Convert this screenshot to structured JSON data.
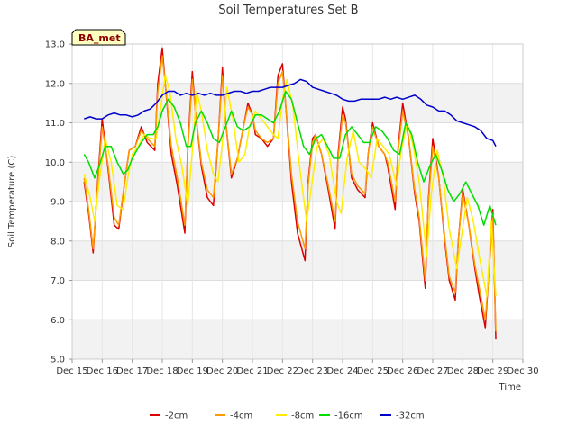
{
  "chart_data": {
    "type": "line",
    "title": "Soil Temperatures Set B",
    "xlabel": "Time",
    "ylabel": "Soil Temperature (C)",
    "badge": "BA_met",
    "xlim": [
      15,
      30
    ],
    "ylim": [
      5.0,
      13.0
    ],
    "x_ticks": [
      {
        "value": 15,
        "label": "Dec 15"
      },
      {
        "value": 16,
        "label": "Dec 16"
      },
      {
        "value": 17,
        "label": "Dec 17"
      },
      {
        "value": 18,
        "label": "Dec 18"
      },
      {
        "value": 19,
        "label": "Dec 19"
      },
      {
        "value": 20,
        "label": "Dec 20"
      },
      {
        "value": 21,
        "label": "Dec 21"
      },
      {
        "value": 22,
        "label": "Dec 22"
      },
      {
        "value": 23,
        "label": "Dec 23"
      },
      {
        "value": 24,
        "label": "Dec 24"
      },
      {
        "value": 25,
        "label": "Dec 25"
      },
      {
        "value": 26,
        "label": "Dec 26"
      },
      {
        "value": 27,
        "label": "Dec 27"
      },
      {
        "value": 28,
        "label": "Dec 28"
      },
      {
        "value": 29,
        "label": "Dec 29"
      },
      {
        "value": 30,
        "label": "Dec 30"
      }
    ],
    "y_ticks": [
      "5.0",
      "6.0",
      "7.0",
      "8.0",
      "9.0",
      "10.0",
      "11.0",
      "12.0",
      "13.0"
    ],
    "grid": true,
    "legend_position": "bottom",
    "series": [
      {
        "name": "-2cm",
        "color": "#dd0000",
        "x": [
          15.4,
          15.55,
          15.7,
          15.85,
          16.0,
          16.2,
          16.4,
          16.55,
          16.75,
          16.9,
          17.1,
          17.3,
          17.5,
          17.75,
          17.85,
          18.0,
          18.1,
          18.3,
          18.5,
          18.75,
          18.85,
          19.0,
          19.1,
          19.3,
          19.5,
          19.7,
          19.85,
          20.0,
          20.1,
          20.3,
          20.5,
          20.7,
          20.85,
          21.0,
          21.1,
          21.3,
          21.5,
          21.7,
          21.85,
          22.0,
          22.1,
          22.3,
          22.5,
          22.75,
          22.85,
          23.0,
          23.1,
          23.3,
          23.5,
          23.75,
          23.85,
          24.0,
          24.1,
          24.3,
          24.5,
          24.75,
          24.85,
          25.0,
          25.2,
          25.4,
          25.5,
          25.75,
          25.85,
          26.0,
          26.2,
          26.4,
          26.55,
          26.75,
          26.85,
          27.0,
          27.2,
          27.4,
          27.55,
          27.75,
          27.85,
          28.0,
          28.2,
          28.4,
          28.55,
          28.75,
          28.85,
          29.0,
          29.1
        ],
        "y": [
          9.5,
          8.7,
          7.7,
          9.5,
          11.1,
          9.8,
          8.4,
          8.3,
          9.5,
          10.3,
          10.4,
          10.9,
          10.5,
          10.3,
          12.0,
          12.9,
          12.0,
          10.2,
          9.4,
          8.2,
          10.4,
          12.3,
          11.3,
          9.9,
          9.1,
          8.9,
          10.5,
          12.4,
          11.1,
          9.6,
          10.1,
          10.9,
          11.5,
          11.2,
          10.7,
          10.6,
          10.4,
          10.6,
          12.2,
          12.5,
          11.5,
          9.5,
          8.2,
          7.5,
          9.5,
          10.6,
          10.7,
          10.2,
          9.4,
          8.3,
          10.2,
          11.4,
          11.1,
          9.6,
          9.3,
          9.1,
          10.2,
          11.0,
          10.4,
          10.2,
          9.9,
          8.8,
          10.4,
          11.5,
          10.6,
          9.2,
          8.5,
          6.8,
          9.0,
          10.6,
          9.6,
          8.0,
          7.0,
          6.5,
          8.0,
          9.3,
          8.4,
          7.3,
          6.6,
          5.8,
          7.0,
          8.8,
          5.5
        ]
      },
      {
        "name": "-4cm",
        "color": "#ff9900",
        "x": [
          15.4,
          15.55,
          15.7,
          15.85,
          16.0,
          16.2,
          16.4,
          16.55,
          16.75,
          16.9,
          17.1,
          17.3,
          17.5,
          17.75,
          17.85,
          18.0,
          18.1,
          18.3,
          18.5,
          18.75,
          18.85,
          19.0,
          19.1,
          19.3,
          19.5,
          19.7,
          19.85,
          20.0,
          20.1,
          20.3,
          20.5,
          20.7,
          20.85,
          21.0,
          21.1,
          21.3,
          21.5,
          21.7,
          21.85,
          22.0,
          22.1,
          22.3,
          22.5,
          22.75,
          22.85,
          23.0,
          23.1,
          23.3,
          23.5,
          23.75,
          23.85,
          24.0,
          24.1,
          24.3,
          24.5,
          24.75,
          24.85,
          25.0,
          25.2,
          25.4,
          25.5,
          25.75,
          25.85,
          26.0,
          26.2,
          26.4,
          26.55,
          26.75,
          26.85,
          27.0,
          27.2,
          27.4,
          27.55,
          27.75,
          27.85,
          28.0,
          28.2,
          28.4,
          28.55,
          28.75,
          28.85,
          29.0,
          29.1
        ],
        "y": [
          9.6,
          8.8,
          7.8,
          9.4,
          10.9,
          9.9,
          8.6,
          8.4,
          9.5,
          10.3,
          10.4,
          10.8,
          10.6,
          10.4,
          11.8,
          12.7,
          12.0,
          10.4,
          9.6,
          8.4,
          10.3,
          12.1,
          11.3,
          10.0,
          9.3,
          9.1,
          10.5,
          12.2,
          11.1,
          9.7,
          10.1,
          10.9,
          11.4,
          11.2,
          10.8,
          10.6,
          10.5,
          10.6,
          12.0,
          12.3,
          11.5,
          9.7,
          8.5,
          7.8,
          9.4,
          10.5,
          10.7,
          10.2,
          9.5,
          8.5,
          10.1,
          11.2,
          11.0,
          9.7,
          9.4,
          9.2,
          10.2,
          10.9,
          10.4,
          10.2,
          10.0,
          9.0,
          10.3,
          11.3,
          10.6,
          9.3,
          8.6,
          7.0,
          8.9,
          10.4,
          9.6,
          8.1,
          7.1,
          6.7,
          8.0,
          9.2,
          8.4,
          7.4,
          6.8,
          6.0,
          7.0,
          8.6,
          5.7
        ]
      },
      {
        "name": "-8cm",
        "color": "#ffee00",
        "x": [
          15.4,
          15.6,
          15.75,
          15.9,
          16.1,
          16.3,
          16.5,
          16.7,
          16.85,
          17.0,
          17.2,
          17.4,
          17.6,
          17.8,
          17.95,
          18.1,
          18.25,
          18.45,
          18.65,
          18.85,
          19.0,
          19.15,
          19.3,
          19.5,
          19.7,
          19.85,
          20.0,
          20.15,
          20.35,
          20.55,
          20.75,
          20.9,
          21.1,
          21.3,
          21.5,
          21.7,
          21.85,
          22.0,
          22.15,
          22.35,
          22.55,
          22.8,
          22.95,
          23.15,
          23.35,
          23.55,
          23.8,
          23.95,
          24.15,
          24.35,
          24.55,
          24.8,
          24.95,
          25.15,
          25.35,
          25.55,
          25.8,
          25.95,
          26.15,
          26.35,
          26.55,
          26.8,
          26.95,
          27.15,
          27.35,
          27.55,
          27.8,
          27.95,
          28.15,
          28.35,
          28.55,
          28.8,
          28.95,
          29.1
        ],
        "y": [
          9.7,
          9.1,
          8.5,
          9.5,
          10.6,
          10.0,
          8.9,
          8.8,
          9.6,
          10.2,
          10.4,
          10.7,
          10.6,
          10.6,
          11.4,
          12.2,
          11.8,
          10.6,
          9.9,
          8.9,
          10.3,
          11.8,
          11.3,
          10.3,
          9.7,
          9.5,
          10.5,
          11.9,
          11.1,
          10.0,
          10.2,
          10.9,
          11.3,
          11.1,
          10.9,
          10.7,
          10.6,
          11.6,
          12.1,
          11.4,
          10.0,
          8.5,
          9.3,
          10.4,
          10.6,
          10.2,
          9.0,
          8.7,
          10.1,
          10.8,
          10.0,
          9.8,
          9.6,
          10.6,
          10.4,
          10.2,
          9.4,
          10.3,
          11.0,
          10.4,
          9.5,
          7.6,
          9.2,
          10.3,
          9.6,
          8.3,
          7.3,
          8.1,
          9.1,
          8.5,
          7.6,
          6.6,
          8.5,
          6.6
        ]
      },
      {
        "name": "-16cm",
        "color": "#00dd00",
        "x": [
          15.4,
          15.55,
          15.75,
          15.9,
          16.1,
          16.3,
          16.5,
          16.7,
          16.85,
          17.0,
          17.3,
          17.5,
          17.7,
          17.85,
          18.0,
          18.2,
          18.4,
          18.6,
          18.8,
          18.95,
          19.1,
          19.3,
          19.5,
          19.7,
          19.9,
          20.1,
          20.3,
          20.5,
          20.7,
          20.9,
          21.1,
          21.3,
          21.5,
          21.7,
          21.9,
          22.1,
          22.3,
          22.5,
          22.7,
          22.9,
          23.1,
          23.3,
          23.5,
          23.7,
          23.9,
          24.1,
          24.3,
          24.5,
          24.7,
          24.9,
          25.1,
          25.3,
          25.5,
          25.7,
          25.9,
          26.1,
          26.3,
          26.5,
          26.7,
          26.9,
          27.1,
          27.3,
          27.5,
          27.7,
          27.9,
          28.1,
          28.3,
          28.5,
          28.7,
          28.9,
          29.1
        ],
        "y": [
          10.2,
          10.0,
          9.6,
          9.9,
          10.4,
          10.4,
          10.0,
          9.7,
          9.8,
          10.1,
          10.5,
          10.7,
          10.7,
          10.9,
          11.3,
          11.6,
          11.4,
          11.0,
          10.4,
          10.4,
          11.0,
          11.3,
          11.0,
          10.6,
          10.5,
          10.9,
          11.3,
          10.9,
          10.8,
          10.9,
          11.2,
          11.2,
          11.1,
          11.0,
          11.3,
          11.8,
          11.6,
          11.0,
          10.4,
          10.2,
          10.6,
          10.7,
          10.4,
          10.1,
          10.1,
          10.7,
          10.9,
          10.7,
          10.5,
          10.5,
          10.9,
          10.8,
          10.6,
          10.3,
          10.2,
          11.0,
          10.7,
          10.0,
          9.5,
          9.9,
          10.2,
          9.8,
          9.3,
          9.0,
          9.2,
          9.5,
          9.2,
          8.9,
          8.4,
          8.9,
          8.4
        ]
      },
      {
        "name": "-32cm",
        "color": "#0000cc",
        "x": [
          15.4,
          15.6,
          15.8,
          16.0,
          16.2,
          16.4,
          16.6,
          16.8,
          17.0,
          17.2,
          17.4,
          17.6,
          17.8,
          18.0,
          18.2,
          18.4,
          18.6,
          18.8,
          19.0,
          19.2,
          19.4,
          19.6,
          19.8,
          20.0,
          20.2,
          20.4,
          20.6,
          20.8,
          21.0,
          21.2,
          21.4,
          21.6,
          21.8,
          22.0,
          22.2,
          22.4,
          22.6,
          22.8,
          23.0,
          23.2,
          23.4,
          23.6,
          23.8,
          24.0,
          24.2,
          24.4,
          24.6,
          24.8,
          25.0,
          25.2,
          25.4,
          25.6,
          25.8,
          26.0,
          26.2,
          26.4,
          26.6,
          26.8,
          27.0,
          27.2,
          27.4,
          27.6,
          27.8,
          28.0,
          28.2,
          28.4,
          28.6,
          28.8,
          29.0,
          29.1
        ],
        "y": [
          11.1,
          11.15,
          11.1,
          11.1,
          11.2,
          11.25,
          11.2,
          11.2,
          11.15,
          11.2,
          11.3,
          11.35,
          11.5,
          11.7,
          11.8,
          11.8,
          11.7,
          11.75,
          11.7,
          11.75,
          11.7,
          11.75,
          11.7,
          11.7,
          11.75,
          11.8,
          11.8,
          11.75,
          11.8,
          11.8,
          11.85,
          11.9,
          11.9,
          11.9,
          11.95,
          12.0,
          12.1,
          12.05,
          11.9,
          11.85,
          11.8,
          11.75,
          11.7,
          11.6,
          11.55,
          11.55,
          11.6,
          11.6,
          11.6,
          11.6,
          11.65,
          11.6,
          11.65,
          11.6,
          11.65,
          11.7,
          11.6,
          11.45,
          11.4,
          11.3,
          11.3,
          11.2,
          11.05,
          11.0,
          10.95,
          10.9,
          10.8,
          10.6,
          10.55,
          10.4
        ]
      }
    ]
  }
}
